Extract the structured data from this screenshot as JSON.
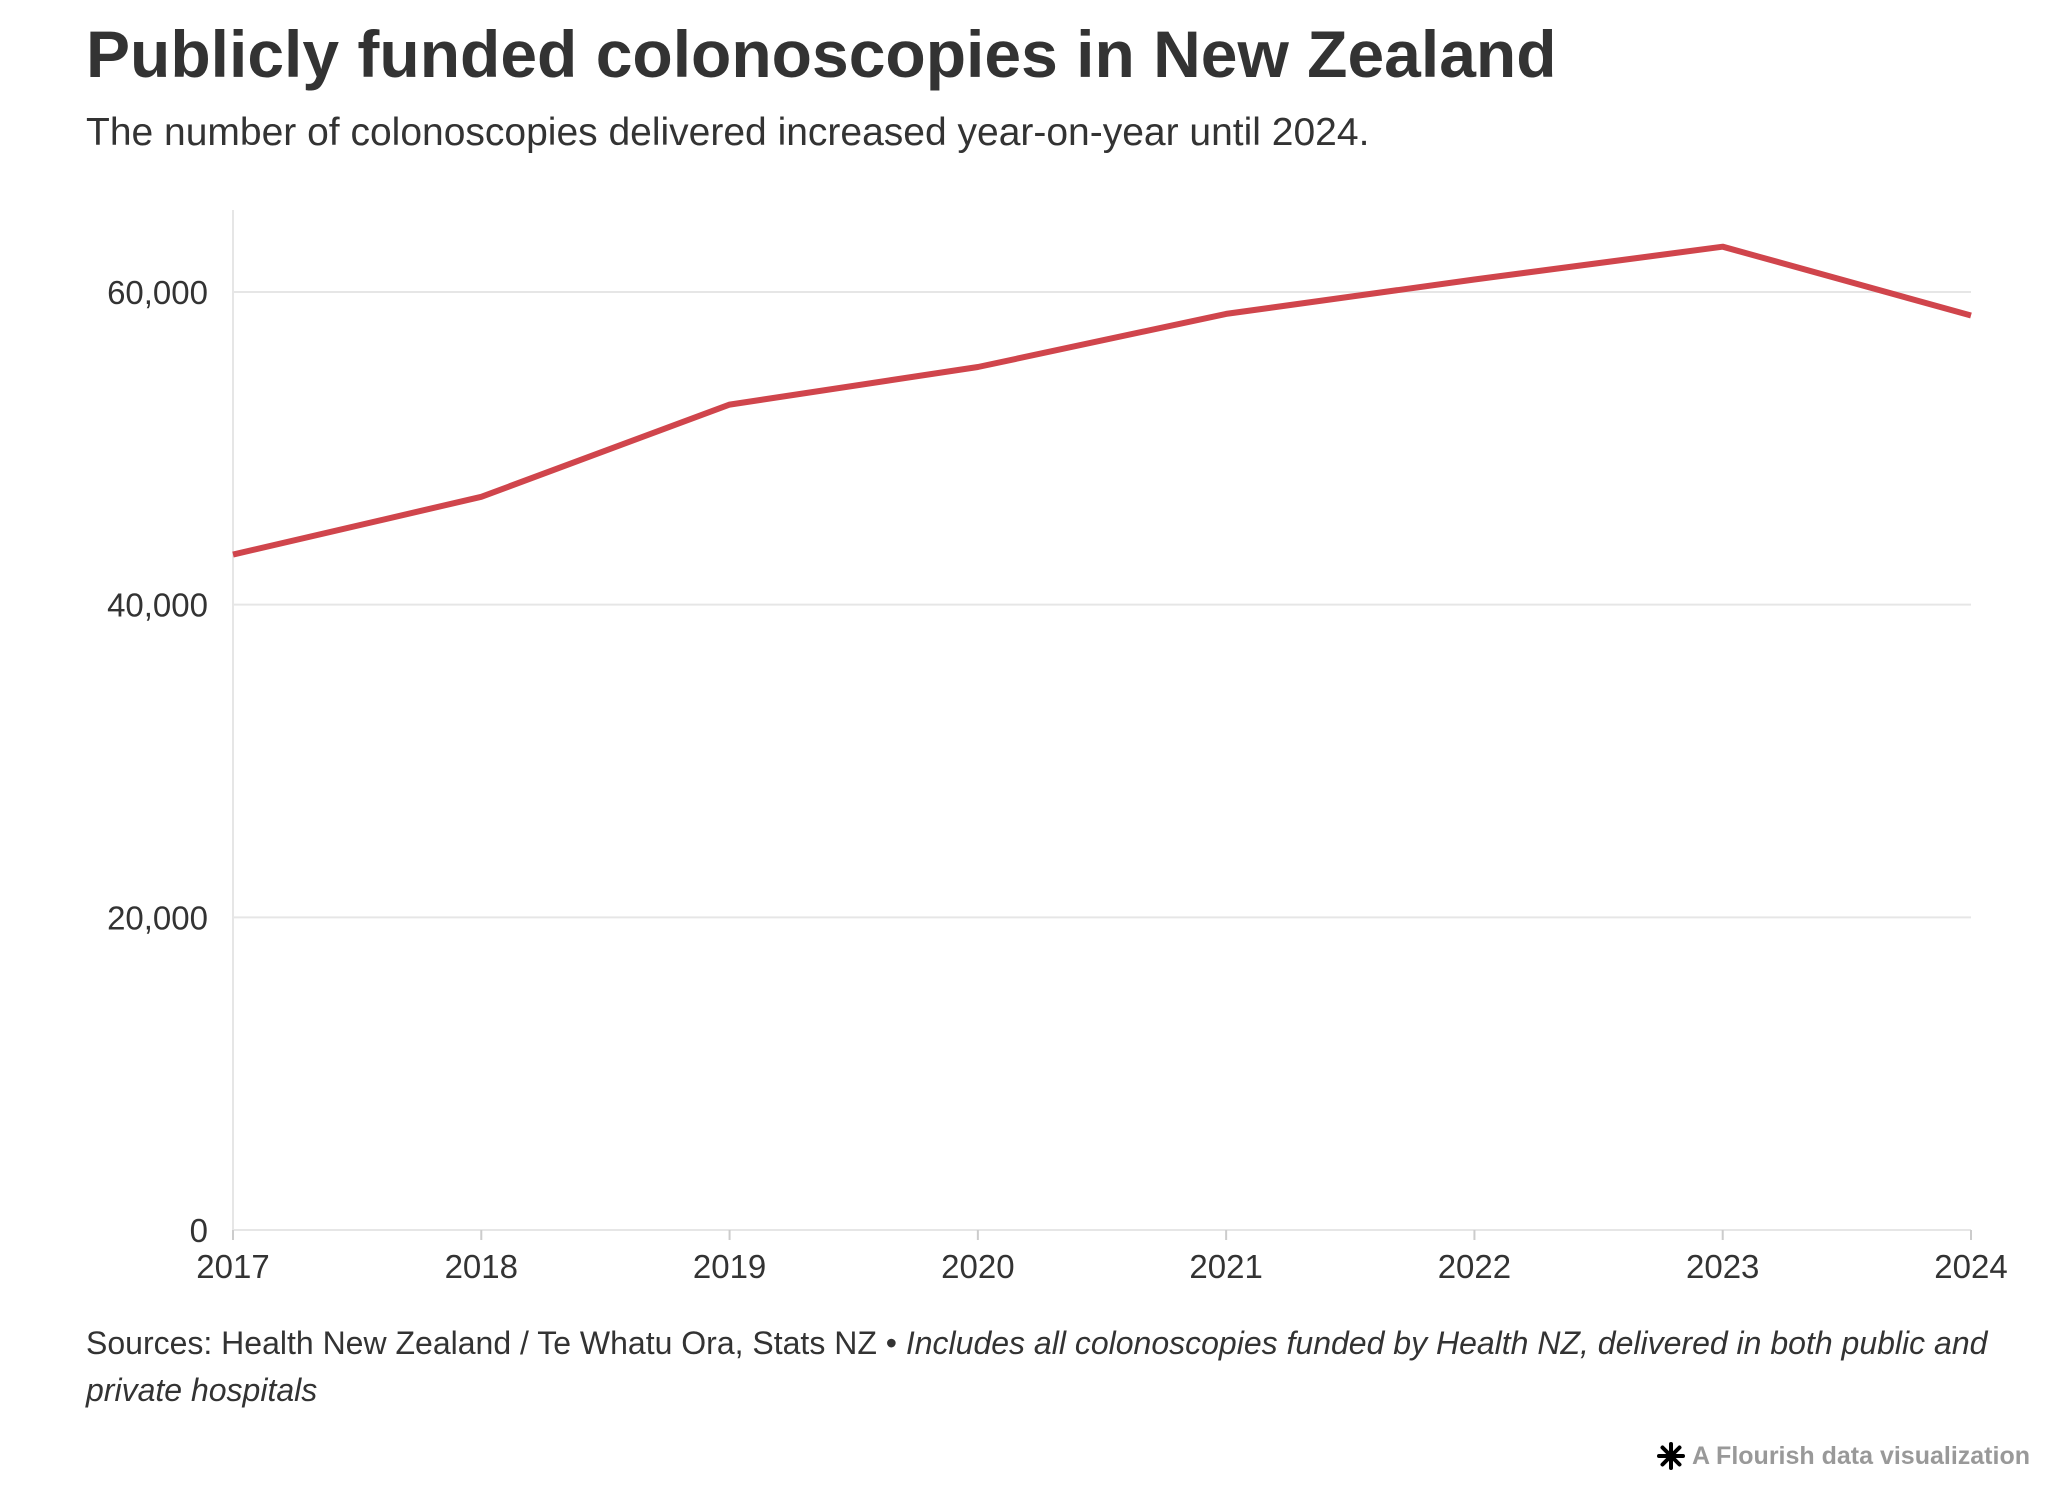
{
  "header": {
    "title": "Publicly funded colonoscopies in New Zealand",
    "subtitle": "The number of colonoscopies delivered increased year-on-year until 2024."
  },
  "footer": {
    "sources": "Sources: Health New Zealand / Te Whatu Ora, Stats NZ",
    "separator": " • ",
    "note": "Includes all colonoscopies funded by Health NZ, delivered in both public and private hospitals"
  },
  "credit": {
    "icon": "flourish-asterisk-icon",
    "label": "A Flourish data visualization"
  },
  "colors": {
    "line": "#d0454c",
    "text": "#333333",
    "grid": "#e6e6e6",
    "credit": "#999999"
  },
  "chart_data": {
    "type": "line",
    "title": "Publicly funded colonoscopies in New Zealand",
    "subtitle": "The number of colonoscopies delivered increased year-on-year until 2024.",
    "x": [
      "2017",
      "2018",
      "2019",
      "2020",
      "2021",
      "2022",
      "2023",
      "2024"
    ],
    "series": [
      {
        "values": [
          43200,
          46900,
          52800,
          55200,
          58600,
          60800,
          62900,
          58500
        ]
      }
    ],
    "yticks": [
      "0",
      "20,000",
      "40,000",
      "60,000"
    ],
    "ytick_values": [
      0,
      20000,
      40000,
      60000
    ],
    "ylim": [
      0,
      65000
    ],
    "grid": true,
    "legend": "none",
    "xlabel": "",
    "ylabel": ""
  }
}
